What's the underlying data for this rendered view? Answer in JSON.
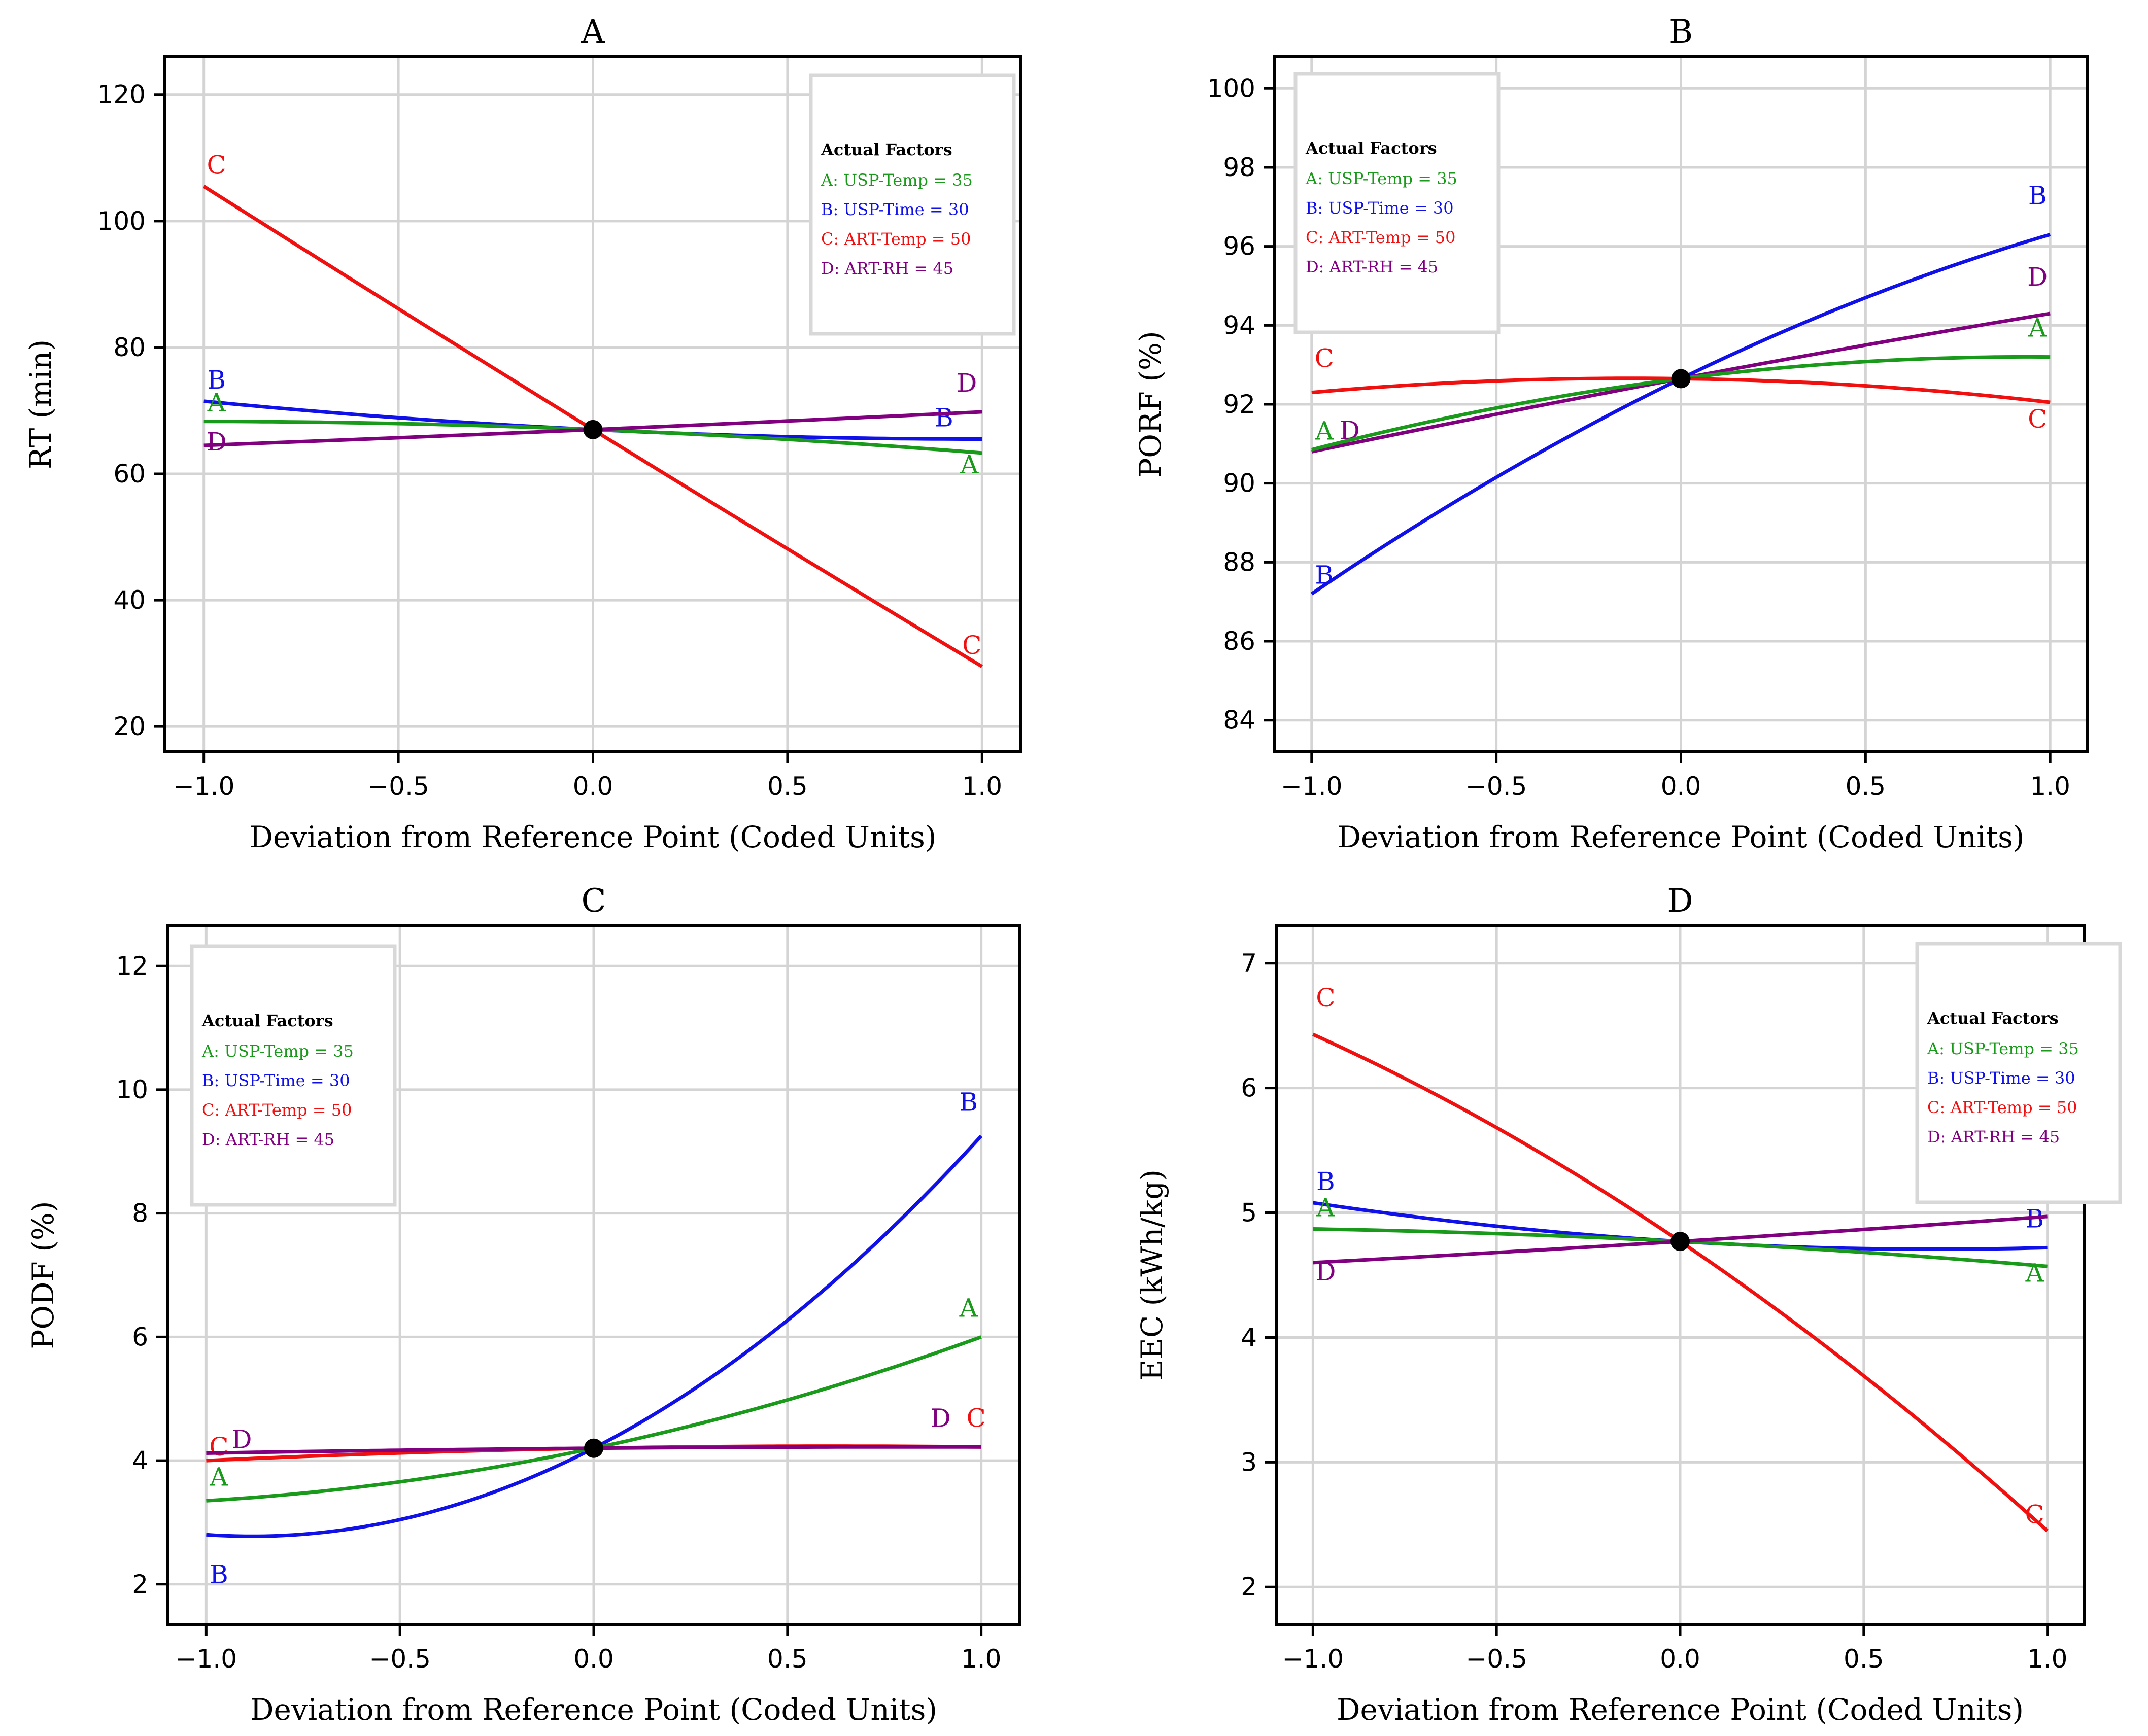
{
  "colors": {
    "A": "#1a9a1a",
    "B": "#1010e8",
    "C": "#f01010",
    "D": "#800080"
  },
  "legend": {
    "title": "Actual Factors",
    "items": [
      {
        "key": "A",
        "text": "A: USP-Temp = 35"
      },
      {
        "key": "B",
        "text": "B: USP-Time = 30"
      },
      {
        "key": "C",
        "text": "C: ART-Temp = 50"
      },
      {
        "key": "D",
        "text": "D: ART-RH = 45"
      }
    ]
  },
  "chart_data": [
    {
      "type": "line",
      "title": "A",
      "xlabel": "Deviation from Reference Point (Coded Units)",
      "ylabel": "RT (min)",
      "xlim": [
        -1.1,
        1.1
      ],
      "ylim": [
        16,
        126
      ],
      "xticks": [
        -1.0,
        -0.5,
        0.0,
        0.5,
        1.0
      ],
      "xtick_labels": [
        "−1.0",
        "−0.5",
        "0.0",
        "0.5",
        "1.0"
      ],
      "yticks": [
        20,
        40,
        60,
        80,
        100,
        120
      ],
      "ytick_labels": [
        "20",
        "40",
        "60",
        "80",
        "100",
        "120"
      ],
      "grid": true,
      "legend_position": "top-right",
      "reference_point": {
        "x": 0,
        "y": 67
      },
      "series": [
        {
          "name": "C",
          "x": [
            -1,
            0,
            1
          ],
          "y": [
            105.5,
            67,
            29.5
          ]
        },
        {
          "name": "B",
          "x": [
            -1,
            0,
            1
          ],
          "y": [
            71.5,
            67,
            65.5
          ]
        },
        {
          "name": "A",
          "x": [
            -1,
            0,
            1
          ],
          "y": [
            68.3,
            67,
            63.3
          ]
        },
        {
          "name": "D",
          "x": [
            -1,
            0,
            1
          ],
          "y": [
            64.5,
            67,
            69.8
          ]
        }
      ]
    },
    {
      "type": "line",
      "title": "B",
      "xlabel": "Deviation from Reference Point (Coded Units)",
      "ylabel": "PORF (%)",
      "xlim": [
        -1.1,
        1.1
      ],
      "ylim": [
        83.2,
        100.8
      ],
      "xticks": [
        -1.0,
        -0.5,
        0.0,
        0.5,
        1.0
      ],
      "xtick_labels": [
        "−1.0",
        "−0.5",
        "0.0",
        "0.5",
        "1.0"
      ],
      "yticks": [
        84,
        86,
        88,
        90,
        92,
        94,
        96,
        98,
        100
      ],
      "ytick_labels": [
        "84",
        "86",
        "88",
        "90",
        "92",
        "94",
        "96",
        "98",
        "100"
      ],
      "grid": true,
      "legend_position": "top-left",
      "reference_point": {
        "x": 0,
        "y": 92.65
      },
      "series": [
        {
          "name": "B",
          "x": [
            -1,
            0,
            1
          ],
          "y": [
            87.2,
            92.65,
            96.3
          ]
        },
        {
          "name": "D",
          "x": [
            -1,
            0,
            1
          ],
          "y": [
            90.8,
            92.65,
            94.3
          ]
        },
        {
          "name": "A",
          "x": [
            -1,
            0,
            1
          ],
          "y": [
            90.85,
            92.65,
            93.2
          ]
        },
        {
          "name": "C",
          "x": [
            -1,
            0,
            1
          ],
          "y": [
            92.3,
            92.65,
            92.05
          ]
        }
      ]
    },
    {
      "type": "line",
      "title": "C",
      "xlabel": "Deviation from Reference Point (Coded Units)",
      "ylabel": "PODF (%)",
      "xlim": [
        -1.1,
        1.1
      ],
      "ylim": [
        1.35,
        12.65
      ],
      "xticks": [
        -1.0,
        -0.5,
        0.0,
        0.5,
        1.0
      ],
      "xtick_labels": [
        "−1.0",
        "−0.5",
        "0.0",
        "0.5",
        "1.0"
      ],
      "yticks": [
        2,
        4,
        6,
        8,
        10,
        12
      ],
      "ytick_labels": [
        "2",
        "4",
        "6",
        "8",
        "10",
        "12"
      ],
      "grid": true,
      "legend_position": "top-left",
      "reference_point": {
        "x": 0,
        "y": 4.2
      },
      "series": [
        {
          "name": "B",
          "x": [
            -1,
            0,
            1
          ],
          "y": [
            2.8,
            4.2,
            9.25
          ]
        },
        {
          "name": "A",
          "x": [
            -1,
            0,
            1
          ],
          "y": [
            3.35,
            4.2,
            6.0
          ]
        },
        {
          "name": "C",
          "x": [
            -1,
            0,
            1
          ],
          "y": [
            4.0,
            4.2,
            4.22
          ]
        },
        {
          "name": "D",
          "x": [
            -1,
            0,
            1
          ],
          "y": [
            4.12,
            4.2,
            4.22
          ]
        }
      ]
    },
    {
      "type": "line",
      "title": "D",
      "xlabel": "Deviation from Reference Point (Coded Units)",
      "ylabel": "EEC (kWh/kg)",
      "xlim": [
        -1.1,
        1.1
      ],
      "ylim": [
        1.7,
        7.3
      ],
      "xticks": [
        -1.0,
        -0.5,
        0.0,
        0.5,
        1.0
      ],
      "xtick_labels": [
        "−1.0",
        "−0.5",
        "0.0",
        "0.5",
        "1.0"
      ],
      "yticks": [
        2,
        3,
        4,
        5,
        6,
        7
      ],
      "ytick_labels": [
        "2",
        "3",
        "4",
        "5",
        "6",
        "7"
      ],
      "grid": true,
      "legend_position": "top-right",
      "reference_point": {
        "x": 0,
        "y": 4.77
      },
      "series": [
        {
          "name": "C",
          "x": [
            -1,
            0,
            1
          ],
          "y": [
            6.43,
            4.77,
            2.45
          ]
        },
        {
          "name": "B",
          "x": [
            -1,
            0,
            1
          ],
          "y": [
            5.08,
            4.77,
            4.72
          ]
        },
        {
          "name": "A",
          "x": [
            -1,
            0,
            1
          ],
          "y": [
            4.87,
            4.77,
            4.57
          ]
        },
        {
          "name": "D",
          "x": [
            -1,
            0,
            1
          ],
          "y": [
            4.6,
            4.77,
            4.97
          ]
        }
      ]
    }
  ]
}
